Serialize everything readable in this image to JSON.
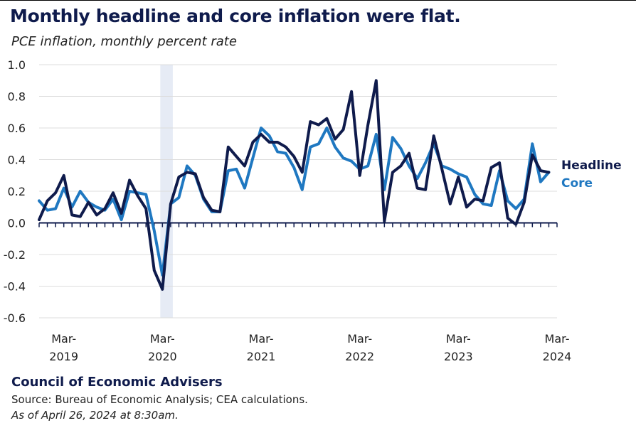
{
  "header": {
    "title": "Monthly headline and core inflation were flat.",
    "subtitle": "PCE inflation, monthly percent rate"
  },
  "footer": {
    "organization": "Council of Economic Advisers",
    "source": "Source: Bureau of Economic Analysis; CEA calculations.",
    "as_of": "As of April 26, 2024 at 8:30am."
  },
  "colors": {
    "headline": "#0f1b4c",
    "core": "#1f78c1",
    "grid": "#dcdcdc",
    "shade": "#e6ebf5"
  },
  "chart_data": {
    "type": "line",
    "title": "Monthly headline and core inflation were flat.",
    "subtitle": "PCE inflation, monthly percent rate",
    "ylim": [
      -0.6,
      1.0
    ],
    "yticks": [
      1.0,
      0.8,
      0.6,
      0.4,
      0.2,
      0.0,
      -0.2,
      -0.4,
      -0.6
    ],
    "ytick_labels": [
      "1.0",
      "0.8",
      "0.6",
      "0.4",
      "0.2",
      "0.0",
      "-0.2",
      "-0.4",
      "-0.6"
    ],
    "xlim": [
      "2018-12",
      "2024-03"
    ],
    "xticks": [
      {
        "date": "2019-03",
        "month": "Mar-",
        "year": "2019"
      },
      {
        "date": "2020-03",
        "month": "Mar-",
        "year": "2020"
      },
      {
        "date": "2021-03",
        "month": "Mar-",
        "year": "2021"
      },
      {
        "date": "2022-03",
        "month": "Mar-",
        "year": "2022"
      },
      {
        "date": "2023-03",
        "month": "Mar-",
        "year": "2023"
      },
      {
        "date": "2024-03",
        "month": "Mar-",
        "year": "2024"
      }
    ],
    "shaded_region": [
      "2020-03",
      "2020-04"
    ],
    "grid": true,
    "legend": "right, inline labels at series ends",
    "series": [
      {
        "name": "Headline",
        "color": "#0f1b4c",
        "start": "2018-12",
        "values": [
          0.02,
          0.14,
          0.19,
          0.3,
          0.05,
          0.04,
          0.13,
          0.05,
          0.09,
          0.19,
          0.06,
          0.27,
          0.17,
          0.09,
          -0.3,
          -0.42,
          0.12,
          0.29,
          0.32,
          0.31,
          0.16,
          0.08,
          0.07,
          0.48,
          0.42,
          0.36,
          0.51,
          0.56,
          0.51,
          0.51,
          0.48,
          0.42,
          0.32,
          0.64,
          0.62,
          0.66,
          0.53,
          0.59,
          0.83,
          0.3,
          0.62,
          0.9,
          0.01,
          0.32,
          0.36,
          0.44,
          0.22,
          0.21,
          0.55,
          0.34,
          0.12,
          0.29,
          0.1,
          0.15,
          0.14,
          0.35,
          0.38,
          0.03,
          -0.01,
          0.13,
          0.43,
          0.33,
          0.32
        ]
      },
      {
        "name": "Core",
        "color": "#1f78c1",
        "start": "2018-12",
        "values": [
          0.14,
          0.08,
          0.09,
          0.22,
          0.1,
          0.2,
          0.13,
          0.1,
          0.08,
          0.15,
          0.02,
          0.2,
          0.19,
          0.18,
          -0.05,
          -0.33,
          0.12,
          0.16,
          0.36,
          0.3,
          0.15,
          0.07,
          0.07,
          0.33,
          0.34,
          0.22,
          0.41,
          0.6,
          0.55,
          0.45,
          0.44,
          0.35,
          0.21,
          0.48,
          0.5,
          0.6,
          0.48,
          0.41,
          0.39,
          0.34,
          0.36,
          0.56,
          0.21,
          0.54,
          0.47,
          0.36,
          0.28,
          0.38,
          0.5,
          0.36,
          0.34,
          0.31,
          0.29,
          0.18,
          0.12,
          0.11,
          0.33,
          0.14,
          0.09,
          0.15,
          0.5,
          0.26,
          0.32
        ]
      }
    ]
  }
}
